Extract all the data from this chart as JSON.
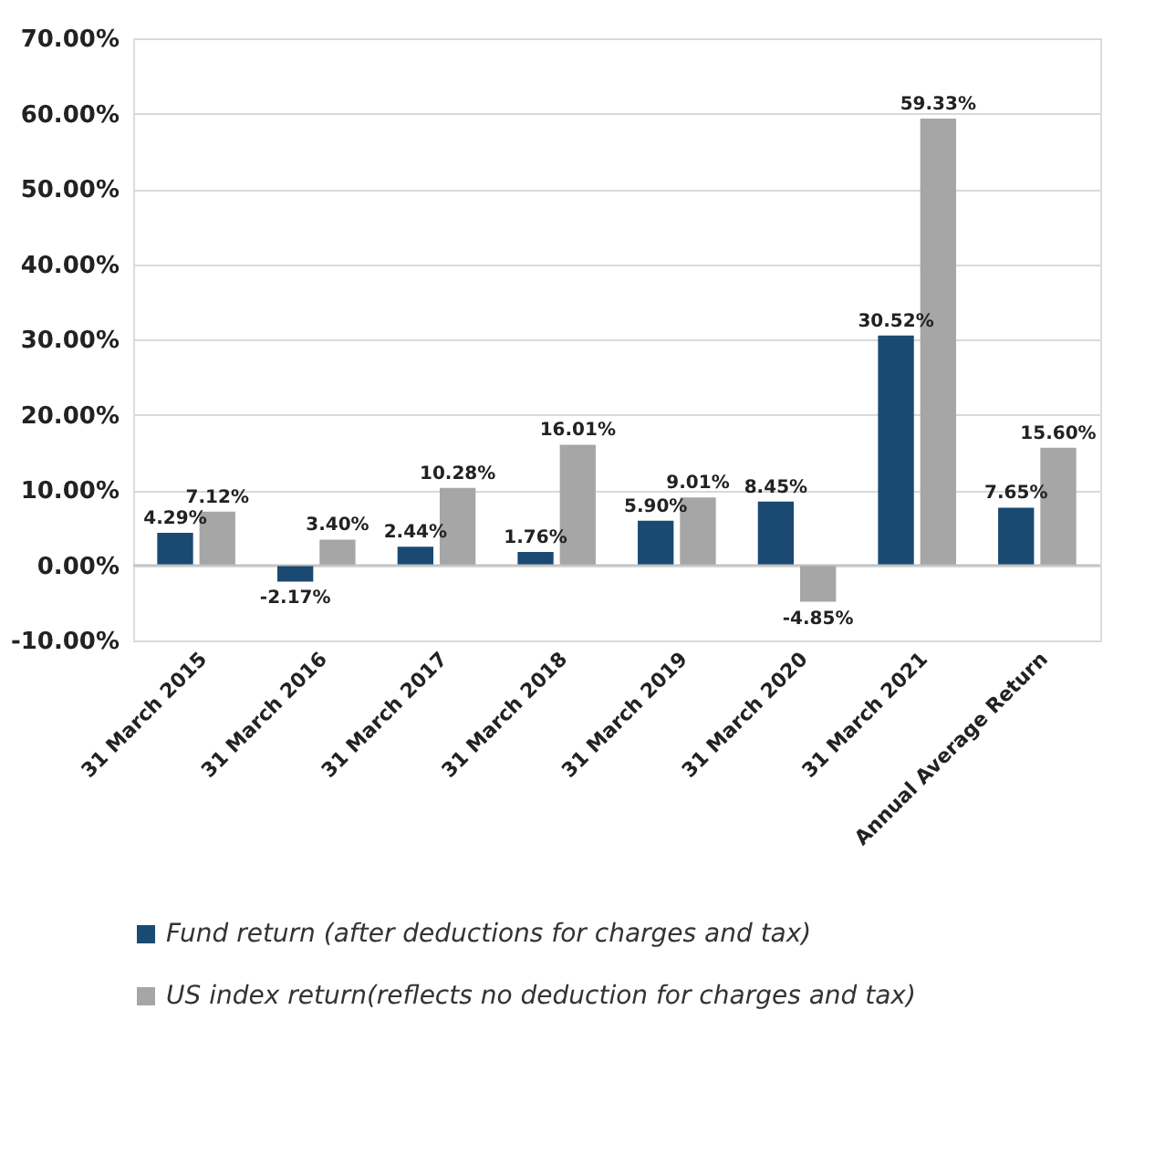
{
  "chart_data": {
    "type": "bar",
    "categories": [
      "31 March 2015",
      "31 March 2016",
      "31 March 2017",
      "31 March 2018",
      "31 March 2019",
      "31 March 2020",
      "31 March 2021",
      "Annual Average Return"
    ],
    "series": [
      {
        "name": "Fund return (after deductions for charges and tax)",
        "color": "#1a4a72",
        "values": [
          4.29,
          -2.17,
          2.44,
          1.76,
          5.9,
          8.45,
          30.52,
          7.65
        ],
        "value_labels": [
          "4.29%",
          "-2.17%",
          "2.44%",
          "1.76%",
          "5.90%",
          "8.45%",
          "30.52%",
          "7.65%"
        ]
      },
      {
        "name": "US index return(reflects no deduction for charges and tax)",
        "color": "#a6a6a6",
        "values": [
          7.12,
          3.4,
          10.28,
          16.01,
          9.01,
          -4.85,
          59.33,
          15.6
        ],
        "value_labels": [
          "7.12%",
          "3.40%",
          "10.28%",
          "16.01%",
          "9.01%",
          "-4.85%",
          "59.33%",
          "15.60%"
        ]
      }
    ],
    "ylim": [
      -10,
      70
    ],
    "yticks": [
      {
        "value": -10,
        "label": "-10.00%"
      },
      {
        "value": 0,
        "label": "0.00%"
      },
      {
        "value": 10,
        "label": "10.00%"
      },
      {
        "value": 20,
        "label": "20.00%"
      },
      {
        "value": 30,
        "label": "30.00%"
      },
      {
        "value": 40,
        "label": "40.00%"
      },
      {
        "value": 50,
        "label": "50.00%"
      },
      {
        "value": 60,
        "label": "60.00%"
      },
      {
        "value": 70,
        "label": "70.00%"
      }
    ],
    "grid": "y",
    "legend": "bottom"
  }
}
